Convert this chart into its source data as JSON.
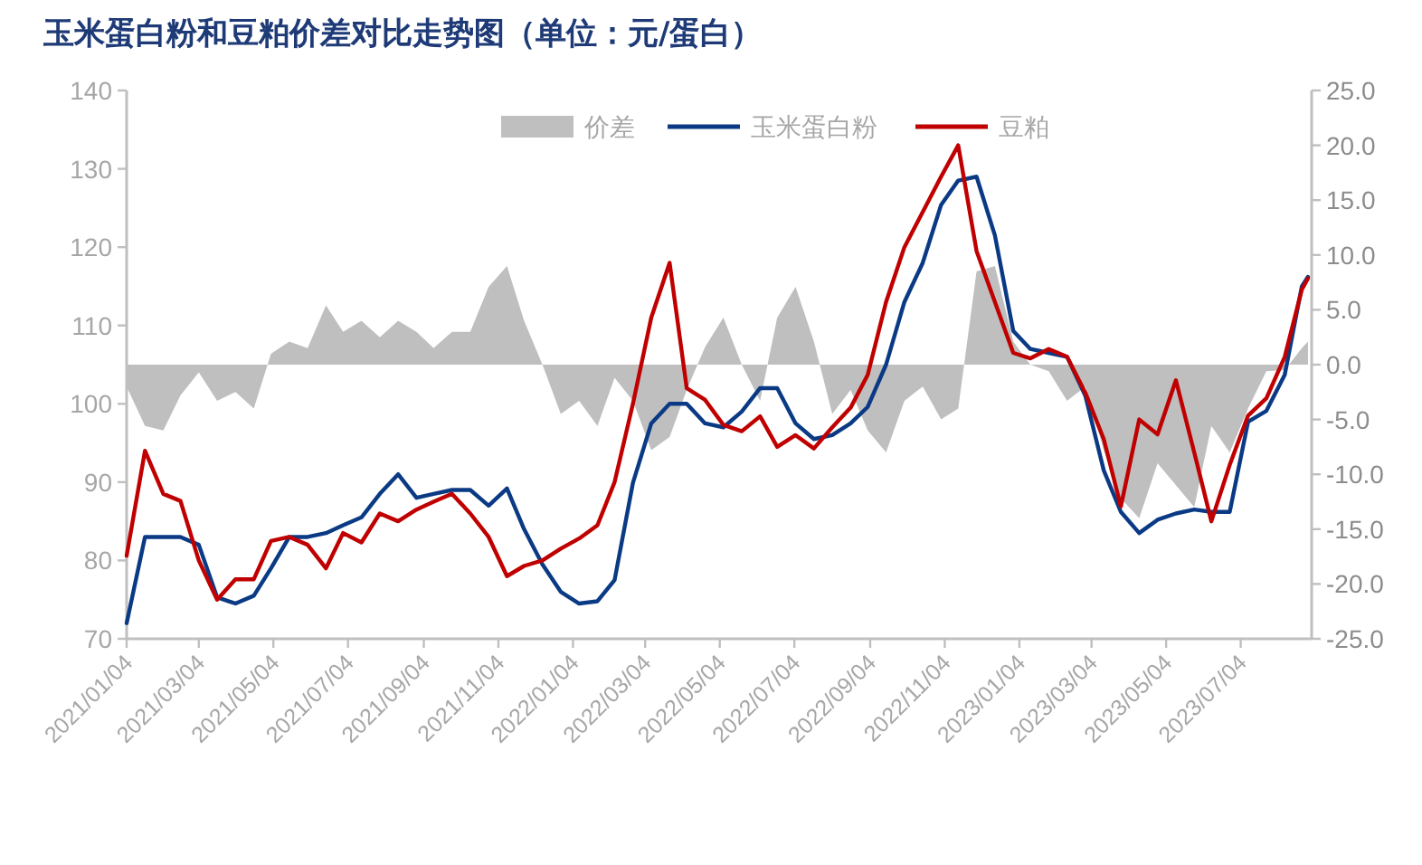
{
  "chart_data": {
    "type": "line",
    "title": "玉米蛋白粉和豆粕价差对比走势图（单位：元/蛋白）",
    "x": [
      "2021-01-04",
      "2021-01-19",
      "2021-02-03",
      "2021-02-17",
      "2021-03-04",
      "2021-03-19",
      "2021-04-03",
      "2021-04-18",
      "2021-05-02",
      "2021-05-17",
      "2021-06-01",
      "2021-06-16",
      "2021-06-30",
      "2021-07-15",
      "2021-07-30",
      "2021-08-14",
      "2021-08-29",
      "2021-09-12",
      "2021-09-27",
      "2021-10-12",
      "2021-10-27",
      "2021-11-11",
      "2021-11-25",
      "2021-12-10",
      "2021-12-25",
      "2022-01-09",
      "2022-01-24",
      "2022-02-07",
      "2022-02-22",
      "2022-03-09",
      "2022-03-24",
      "2022-04-07",
      "2022-04-22",
      "2022-05-07",
      "2022-05-22",
      "2022-06-06",
      "2022-06-20",
      "2022-07-05",
      "2022-07-20",
      "2022-08-04",
      "2022-08-19",
      "2022-09-02",
      "2022-09-17",
      "2022-10-02",
      "2022-10-17",
      "2022-11-01",
      "2022-11-15",
      "2022-11-30",
      "2022-12-15",
      "2022-12-30",
      "2023-01-13",
      "2023-01-28",
      "2023-02-12",
      "2023-02-27",
      "2023-03-14",
      "2023-03-28",
      "2023-04-12",
      "2023-04-27",
      "2023-05-12",
      "2023-05-27",
      "2023-06-10",
      "2023-06-25",
      "2023-07-10",
      "2023-07-25",
      "2023-08-09",
      "2023-08-23",
      "2023-08-28"
    ],
    "series": [
      {
        "name": "价差",
        "type": "area",
        "axis": "y2",
        "color": "#bfbfbf",
        "values": [
          -2,
          -5.6,
          -6,
          -2.8,
          -0.7,
          -3.3,
          -2.5,
          -4,
          1,
          2.1,
          1.5,
          5.4,
          3,
          4,
          2.5,
          4,
          3,
          1.5,
          3,
          3,
          7.1,
          9,
          4,
          0,
          -4.5,
          -3.3,
          -5.6,
          -1.2,
          -3.3,
          -7.8,
          -6.6,
          -2.3,
          1.6,
          4.3,
          0,
          -3.3,
          4.3,
          7.1,
          2.1,
          -4.5,
          -2.3,
          -6,
          -8,
          -3.3,
          -2,
          -5,
          -4,
          8.5,
          9,
          2.1,
          0,
          -0.6,
          -3.3,
          -2,
          -7.8,
          -12.2,
          -14,
          -9,
          -11,
          -13,
          -5.6,
          -8,
          -4,
          -0.6,
          -0.5,
          1.5,
          2.1
        ]
      },
      {
        "name": "玉米蛋白粉",
        "color": "#0b3a85",
        "values": [
          72,
          83,
          83,
          83,
          82,
          75.3,
          74.5,
          75.5,
          79,
          83,
          83,
          83.5,
          84.5,
          85.5,
          88.5,
          91,
          88,
          88.5,
          89,
          89,
          87,
          89.2,
          84,
          79.5,
          76,
          74.5,
          74.8,
          77.5,
          89.9,
          97.5,
          100,
          100,
          97.5,
          97,
          99,
          102,
          102,
          97.5,
          95.5,
          96,
          97.5,
          99.6,
          105,
          113,
          118,
          125.4,
          128.5,
          129,
          121.5,
          109.3,
          107,
          106.5,
          106,
          101,
          91.5,
          86.2,
          83.5,
          85.2,
          86,
          86.5,
          86.2,
          86.2,
          97.7,
          99.1,
          103.7,
          115,
          116.2
        ]
      },
      {
        "name": "豆粕",
        "color": "#c00000",
        "values": [
          80.6,
          94,
          88.5,
          87.6,
          80,
          75,
          77.6,
          77.6,
          82.5,
          83,
          82,
          79,
          83.5,
          82.3,
          86,
          85,
          86.5,
          87.5,
          88.5,
          86,
          83,
          78,
          79.3,
          80,
          81.5,
          82.8,
          84.5,
          90,
          100,
          111,
          118,
          102,
          100.5,
          97.3,
          96.5,
          98.4,
          94.5,
          96,
          94.3,
          97,
          99.5,
          103.7,
          113,
          120,
          124.5,
          129,
          133,
          119.5,
          113,
          106.5,
          105.8,
          107,
          106,
          101.4,
          95.5,
          86.9,
          98,
          96.1,
          103,
          93.8,
          85,
          92.2,
          98.5,
          100.7,
          106,
          114.6,
          116
        ]
      }
    ],
    "xlim": [
      "2021-01-04",
      "2023-08-31"
    ],
    "xticks": [
      {
        "value": "2021-01-04",
        "label": "2021/01/04"
      },
      {
        "value": "2021-03-04",
        "label": "2021/03/04"
      },
      {
        "value": "2021-05-04",
        "label": "2021/05/04"
      },
      {
        "value": "2021-07-04",
        "label": "2021/07/04"
      },
      {
        "value": "2021-09-04",
        "label": "2021/09/04"
      },
      {
        "value": "2021-11-04",
        "label": "2021/11/04"
      },
      {
        "value": "2022-01-04",
        "label": "2022/01/04"
      },
      {
        "value": "2022-03-04",
        "label": "2022/03/04"
      },
      {
        "value": "2022-05-04",
        "label": "2022/05/04"
      },
      {
        "value": "2022-07-04",
        "label": "2022/07/04"
      },
      {
        "value": "2022-09-04",
        "label": "2022/09/04"
      },
      {
        "value": "2022-11-04",
        "label": "2022/11/04"
      },
      {
        "value": "2023-01-04",
        "label": "2023/01/04"
      },
      {
        "value": "2023-03-04",
        "label": "2023/03/04"
      },
      {
        "value": "2023-05-04",
        "label": "2023/05/04"
      },
      {
        "value": "2023-07-04",
        "label": "2023/07/04"
      }
    ],
    "ylim": [
      70,
      140
    ],
    "yticks": [
      70,
      80,
      90,
      100,
      110,
      120,
      130,
      140
    ],
    "y2lim": [
      -25,
      25
    ],
    "y2ticks": [
      {
        "value": -25,
        "label": "-25.0"
      },
      {
        "value": -20,
        "label": "-20.0"
      },
      {
        "value": -15,
        "label": "-15.0"
      },
      {
        "value": -10,
        "label": "-10.0"
      },
      {
        "value": -5,
        "label": "-5.0"
      },
      {
        "value": 0,
        "label": "0.0"
      },
      {
        "value": 5,
        "label": "5.0"
      },
      {
        "value": 10,
        "label": "10.0"
      },
      {
        "value": 15,
        "label": "15.0"
      },
      {
        "value": 20,
        "label": "20.0"
      },
      {
        "value": 25,
        "label": "25.0"
      }
    ],
    "legend": "top"
  }
}
